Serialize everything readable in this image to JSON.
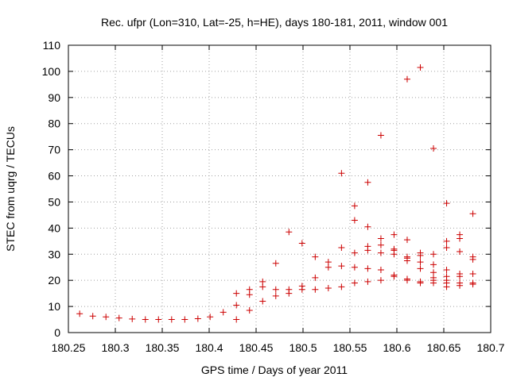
{
  "chart_data": {
    "type": "scatter",
    "title": "Rec. ufpr (Lon=310, Lat=-25, h=HE), days 180-181, 2011, window 001",
    "xlabel": "GPS time / Days of year 2011",
    "ylabel": "STEC from uqrg / TECUs",
    "xlim": [
      180.25,
      180.7
    ],
    "ylim": [
      0,
      110
    ],
    "xticks": [
      180.25,
      180.3,
      180.35,
      180.4,
      180.45,
      180.5,
      180.55,
      180.6,
      180.65,
      180.7
    ],
    "xtick_labels": [
      "180.25",
      "180.3",
      "180.35",
      "180.4",
      "180.45",
      "180.5",
      "180.55",
      "180.6",
      "180.65",
      "180.7"
    ],
    "yticks": [
      0,
      10,
      20,
      30,
      40,
      50,
      60,
      70,
      80,
      90,
      100,
      110
    ],
    "ytick_labels": [
      "0",
      "10",
      "20",
      "30",
      "40",
      "50",
      "60",
      "70",
      "80",
      "90",
      "100",
      "110"
    ],
    "grid": true,
    "legend": "none",
    "marker": "plus",
    "color": "#cc0000",
    "points": [
      [
        180.262,
        7.2
      ],
      [
        180.276,
        6.3
      ],
      [
        180.29,
        6.0
      ],
      [
        180.304,
        5.6
      ],
      [
        180.318,
        5.2
      ],
      [
        180.332,
        5.0
      ],
      [
        180.346,
        5.0
      ],
      [
        180.36,
        5.0
      ],
      [
        180.374,
        5.0
      ],
      [
        180.388,
        5.3
      ],
      [
        180.401,
        6.0
      ],
      [
        180.415,
        7.8
      ],
      [
        180.429,
        5.0
      ],
      [
        180.429,
        10.5
      ],
      [
        180.429,
        15.0
      ],
      [
        180.443,
        8.5
      ],
      [
        180.443,
        14.5
      ],
      [
        180.443,
        16.5
      ],
      [
        180.457,
        12.0
      ],
      [
        180.457,
        17.5
      ],
      [
        180.457,
        19.5
      ],
      [
        180.471,
        14.0
      ],
      [
        180.471,
        16.5
      ],
      [
        180.471,
        26.5
      ],
      [
        180.485,
        15.0
      ],
      [
        180.485,
        16.5
      ],
      [
        180.485,
        38.5
      ],
      [
        180.499,
        16.5
      ],
      [
        180.499,
        17.8
      ],
      [
        180.499,
        34.2
      ],
      [
        180.513,
        16.5
      ],
      [
        180.513,
        21.0
      ],
      [
        180.513,
        29.0
      ],
      [
        180.527,
        17.0
      ],
      [
        180.527,
        25.0
      ],
      [
        180.527,
        27.0
      ],
      [
        180.541,
        17.5
      ],
      [
        180.541,
        25.5
      ],
      [
        180.541,
        32.5
      ],
      [
        180.541,
        61.0
      ],
      [
        180.555,
        19.0
      ],
      [
        180.555,
        25.0
      ],
      [
        180.555,
        30.5
      ],
      [
        180.555,
        43.0
      ],
      [
        180.555,
        48.5
      ],
      [
        180.569,
        19.5
      ],
      [
        180.569,
        24.5
      ],
      [
        180.569,
        31.5
      ],
      [
        180.569,
        33.0
      ],
      [
        180.569,
        40.5
      ],
      [
        180.569,
        57.5
      ],
      [
        180.583,
        20.0
      ],
      [
        180.583,
        24.0
      ],
      [
        180.583,
        30.5
      ],
      [
        180.583,
        33.5
      ],
      [
        180.583,
        36.0
      ],
      [
        180.583,
        75.5
      ],
      [
        180.597,
        21.5
      ],
      [
        180.597,
        22.0
      ],
      [
        180.597,
        30.0
      ],
      [
        180.597,
        31.5
      ],
      [
        180.597,
        32.0
      ],
      [
        180.597,
        37.5
      ],
      [
        180.611,
        20.0
      ],
      [
        180.611,
        20.5
      ],
      [
        180.611,
        27.5
      ],
      [
        180.611,
        28.5
      ],
      [
        180.611,
        29.0
      ],
      [
        180.611,
        35.5
      ],
      [
        180.611,
        97.0
      ],
      [
        180.625,
        19.0
      ],
      [
        180.625,
        19.5
      ],
      [
        180.625,
        24.5
      ],
      [
        180.625,
        27.0
      ],
      [
        180.625,
        29.5
      ],
      [
        180.625,
        30.5
      ],
      [
        180.625,
        101.5
      ],
      [
        180.639,
        19.0
      ],
      [
        180.639,
        20.0
      ],
      [
        180.639,
        21.0
      ],
      [
        180.639,
        23.0
      ],
      [
        180.639,
        26.0
      ],
      [
        180.639,
        30.0
      ],
      [
        180.639,
        70.5
      ],
      [
        180.653,
        17.5
      ],
      [
        180.653,
        19.0
      ],
      [
        180.653,
        20.0
      ],
      [
        180.653,
        21.5
      ],
      [
        180.653,
        24.0
      ],
      [
        180.653,
        32.5
      ],
      [
        180.653,
        35.0
      ],
      [
        180.653,
        49.5
      ],
      [
        180.667,
        18.0
      ],
      [
        180.667,
        19.0
      ],
      [
        180.667,
        21.5
      ],
      [
        180.667,
        22.5
      ],
      [
        180.667,
        31.0
      ],
      [
        180.667,
        36.0
      ],
      [
        180.667,
        37.5
      ],
      [
        180.681,
        18.5
      ],
      [
        180.681,
        19.0
      ],
      [
        180.681,
        22.5
      ],
      [
        180.681,
        28.0
      ],
      [
        180.681,
        29.0
      ],
      [
        180.681,
        45.5
      ]
    ]
  }
}
